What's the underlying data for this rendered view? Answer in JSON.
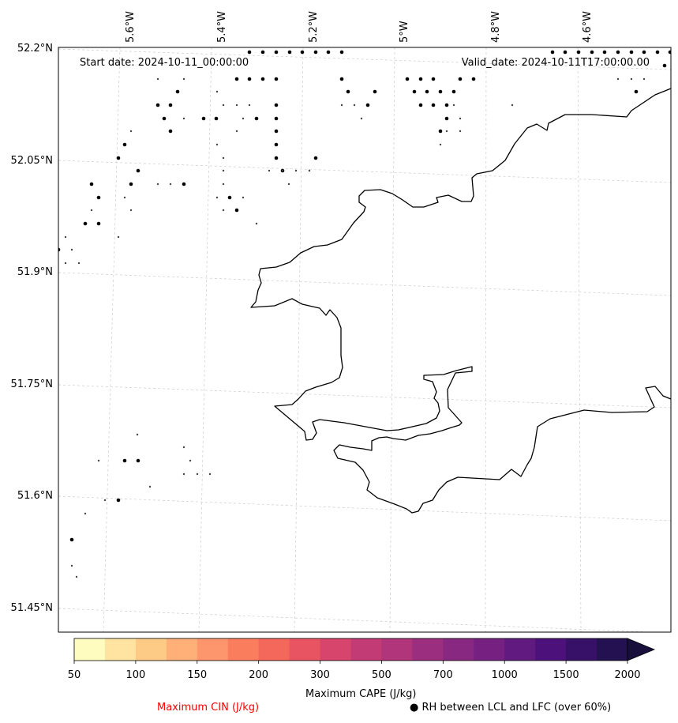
{
  "map": {
    "start_date_text": "Start date: 2024-10-11_00:00:00",
    "valid_date_text": "Valid_date: 2024-10-11T17:00:00.00",
    "lon_ticks": [
      "5.6°W",
      "5.4°W",
      "5.2°W",
      "5°W",
      "4.8°W",
      "4.6°W"
    ],
    "lat_ticks": [
      "52.2°N",
      "52.05°N",
      "51.9°N",
      "51.75°N",
      "51.6°N",
      "51.45°N"
    ]
  },
  "colorbar": {
    "label": "Maximum CAPE (J/kg)",
    "tick_labels": [
      "50",
      "100",
      "150",
      "200",
      "300",
      "500",
      "700",
      "1000",
      "1500",
      "2000"
    ],
    "colors": [
      "#fefdbf",
      "#fee4a0",
      "#fecb86",
      "#feb078",
      "#fd966c",
      "#fa7d5e",
      "#f4675b",
      "#e95462",
      "#d8456c",
      "#c33b75",
      "#b0357a",
      "#9c2e7f",
      "#892881",
      "#762181",
      "#611a7f",
      "#4c117a",
      "#361167",
      "#231151"
    ],
    "extend_color": "#180f3d"
  },
  "legend": {
    "cin_label": "Maximum CIN (J/kg)",
    "rh_label": "RH between LCL and LFC (over 60%)",
    "rh_marker": "●"
  }
}
